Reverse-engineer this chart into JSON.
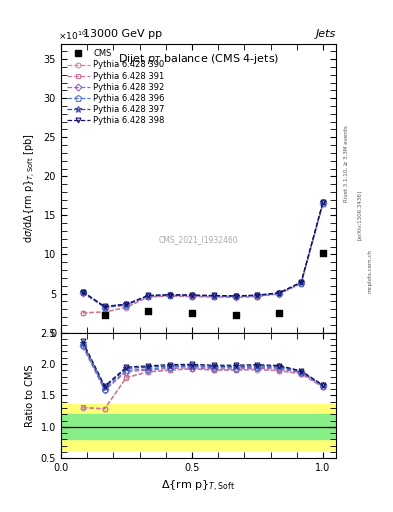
{
  "title": "Dijet $p_T$ balance (CMS 4-jets)",
  "energy_label": "13000 GeV pp",
  "jets_label": "Jets",
  "xlim": [
    0,
    1.05
  ],
  "ylim_main": [
    0,
    37
  ],
  "ylim_ratio": [
    0.5,
    2.5
  ],
  "cms_x": [
    0.167,
    0.333,
    0.5,
    0.667,
    0.833,
    1.0
  ],
  "cms_y": [
    2.2,
    2.8,
    2.5,
    2.2,
    2.5,
    10.2
  ],
  "pythia_x": [
    0.083,
    0.167,
    0.25,
    0.333,
    0.417,
    0.5,
    0.583,
    0.667,
    0.75,
    0.833,
    0.917,
    1.0
  ],
  "pythia_390": [
    2.5,
    2.6,
    3.2,
    4.55,
    4.65,
    4.6,
    4.55,
    4.5,
    4.6,
    4.95,
    6.25,
    16.5
  ],
  "pythia_391": [
    2.55,
    2.65,
    3.25,
    4.58,
    4.67,
    4.62,
    4.57,
    4.52,
    4.62,
    4.97,
    6.27,
    16.5
  ],
  "pythia_392": [
    5.1,
    3.2,
    3.5,
    4.65,
    4.75,
    4.7,
    4.65,
    4.6,
    4.7,
    5.0,
    6.35,
    16.55
  ],
  "pythia_396": [
    5.15,
    3.25,
    3.55,
    4.68,
    4.78,
    4.73,
    4.68,
    4.63,
    4.73,
    5.03,
    6.38,
    16.6
  ],
  "pythia_397": [
    5.2,
    3.3,
    3.6,
    4.72,
    4.82,
    4.77,
    4.72,
    4.67,
    4.77,
    5.07,
    6.42,
    16.65
  ],
  "pythia_398": [
    5.25,
    3.35,
    3.65,
    4.75,
    4.85,
    4.8,
    4.75,
    4.7,
    4.8,
    5.1,
    6.45,
    16.7
  ],
  "ratio_390": [
    1.3,
    1.28,
    1.78,
    1.87,
    1.9,
    1.92,
    1.9,
    1.9,
    1.91,
    1.89,
    1.84,
    1.63
  ],
  "ratio_391": [
    1.31,
    1.29,
    1.79,
    1.875,
    1.905,
    1.925,
    1.905,
    1.905,
    1.915,
    1.895,
    1.845,
    1.635
  ],
  "ratio_392": [
    2.28,
    1.58,
    1.88,
    1.9,
    1.93,
    1.94,
    1.92,
    1.92,
    1.93,
    1.92,
    1.86,
    1.645
  ],
  "ratio_396": [
    2.3,
    1.6,
    1.9,
    1.92,
    1.95,
    1.96,
    1.94,
    1.94,
    1.95,
    1.94,
    1.87,
    1.655
  ],
  "ratio_397": [
    2.33,
    1.63,
    1.93,
    1.95,
    1.97,
    1.975,
    1.96,
    1.96,
    1.97,
    1.96,
    1.88,
    1.66
  ],
  "ratio_398": [
    2.36,
    1.65,
    1.95,
    1.97,
    1.99,
    1.995,
    1.98,
    1.98,
    1.99,
    1.975,
    1.89,
    1.665
  ],
  "tune_styles": {
    "390": {
      "color": "#cc88aa",
      "marker": "o",
      "ms": 3.5,
      "label": "Pythia 6.428 390",
      "ls": "--"
    },
    "391": {
      "color": "#cc7799",
      "marker": "s",
      "ms": 3.5,
      "label": "Pythia 6.428 391",
      "ls": "--"
    },
    "392": {
      "color": "#9966bb",
      "marker": "D",
      "ms": 3.5,
      "label": "Pythia 6.428 392",
      "ls": "--"
    },
    "396": {
      "color": "#5577cc",
      "marker": "p",
      "ms": 4.5,
      "label": "Pythia 6.428 396",
      "ls": "--"
    },
    "397": {
      "color": "#3344aa",
      "marker": "*",
      "ms": 5.0,
      "label": "Pythia 6.428 397",
      "ls": "--"
    },
    "398": {
      "color": "#111166",
      "marker": "v",
      "ms": 3.5,
      "label": "Pythia 6.428 398",
      "ls": "--"
    }
  },
  "cms_color": "#000000",
  "green_band": [
    0.8,
    1.2
  ],
  "yellow_band": [
    0.63,
    1.37
  ],
  "watermark": "CMS_2021_I1932460",
  "rivet_label": "Rivet 3.1.10, ≥ 3.3M events",
  "arxiv_label": "[arXiv:1306.3436]",
  "mcplots_label": "mcplots.cern.ch"
}
